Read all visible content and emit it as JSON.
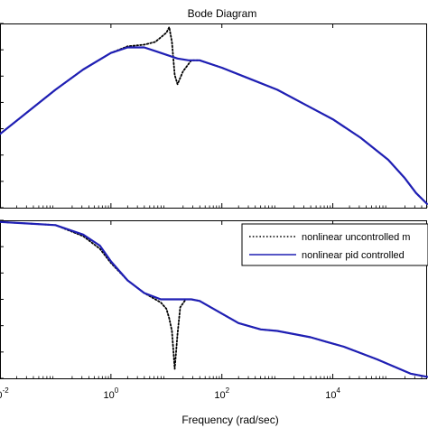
{
  "chart_data": {
    "type": "line",
    "title": "Bode Diagram",
    "xlabel": "Frequency  (rad/sec)",
    "xscale": "log10",
    "xlim_log10": [
      -2,
      5.7
    ],
    "xticks": [
      {
        "exp": -2,
        "base": "10",
        "sup": "-2"
      },
      {
        "exp": 0,
        "base": "10",
        "sup": "0"
      },
      {
        "exp": 2,
        "base": "10",
        "sup": "2"
      },
      {
        "exp": 4,
        "base": "10",
        "sup": "4"
      }
    ],
    "grid": false,
    "legend": {
      "placement": "top-right",
      "entries": [
        "nonlinear uncontrolled m",
        "nonlinear pid controlled"
      ]
    },
    "colors": {
      "pid": "#1f1fb4",
      "uncontrolled": "#000000"
    },
    "panels": [
      {
        "name": "magnitude",
        "ylim": [
          0,
          1
        ],
        "series": [
          {
            "name": "nonlinear uncontrolled m",
            "style": "dotted",
            "x": [
              -2,
              -1.5,
              -1,
              -0.5,
              0,
              0.3,
              0.6,
              0.8,
              1.0,
              1.05,
              1.1,
              1.15,
              1.2,
              1.3,
              1.45,
              1.6,
              2.0,
              2.5,
              3.0,
              3.5,
              4.0,
              4.5,
              5.0,
              5.3,
              5.5,
              5.7
            ],
            "y": [
              0.4,
              0.52,
              0.64,
              0.75,
              0.84,
              0.876,
              0.885,
              0.9,
              0.95,
              0.98,
              0.9,
              0.72,
              0.67,
              0.74,
              0.8,
              0.8,
              0.76,
              0.7,
              0.64,
              0.56,
              0.48,
              0.38,
              0.26,
              0.16,
              0.08,
              0.02
            ]
          },
          {
            "name": "nonlinear pid controlled",
            "style": "solid",
            "x": [
              -2,
              -1.5,
              -1,
              -0.5,
              0,
              0.3,
              0.6,
              0.8,
              1.0,
              1.2,
              1.4,
              1.6,
              2.0,
              2.5,
              3.0,
              3.5,
              4.0,
              4.5,
              5.0,
              5.3,
              5.5,
              5.7
            ],
            "y": [
              0.4,
              0.52,
              0.64,
              0.75,
              0.84,
              0.87,
              0.87,
              0.85,
              0.83,
              0.81,
              0.8,
              0.8,
              0.76,
              0.7,
              0.64,
              0.56,
              0.48,
              0.38,
              0.26,
              0.16,
              0.08,
              0.02
            ]
          }
        ]
      },
      {
        "name": "phase",
        "ylim": [
          0,
          1
        ],
        "series": [
          {
            "name": "nonlinear uncontrolled m",
            "style": "dotted",
            "x": [
              -2,
              -1.5,
              -1,
              -0.5,
              -0.2,
              0,
              0.3,
              0.6,
              0.9,
              1.0,
              1.05,
              1.1,
              1.15,
              1.2,
              1.25,
              1.35,
              1.45,
              1.6,
              1.8,
              2.0,
              2.3,
              2.7,
              3.0,
              3.3,
              3.6,
              3.9,
              4.2,
              4.5,
              4.8,
              5.0,
              5.2,
              5.4,
              5.7
            ],
            "y": [
              0.99,
              0.98,
              0.97,
              0.9,
              0.82,
              0.73,
              0.62,
              0.54,
              0.48,
              0.44,
              0.38,
              0.3,
              0.06,
              0.28,
              0.45,
              0.5,
              0.5,
              0.49,
              0.45,
              0.41,
              0.35,
              0.31,
              0.3,
              0.28,
              0.26,
              0.23,
              0.2,
              0.16,
              0.12,
              0.09,
              0.06,
              0.03,
              0.01
            ]
          },
          {
            "name": "nonlinear pid controlled",
            "style": "solid",
            "x": [
              -2,
              -1.5,
              -1,
              -0.5,
              -0.2,
              0,
              0.3,
              0.6,
              0.9,
              1.1,
              1.3,
              1.45,
              1.6,
              1.8,
              2.0,
              2.3,
              2.7,
              3.0,
              3.3,
              3.6,
              3.9,
              4.2,
              4.5,
              4.8,
              5.0,
              5.2,
              5.4,
              5.7
            ],
            "y": [
              0.99,
              0.98,
              0.97,
              0.91,
              0.84,
              0.74,
              0.62,
              0.54,
              0.5,
              0.5,
              0.5,
              0.5,
              0.49,
              0.45,
              0.41,
              0.35,
              0.31,
              0.3,
              0.28,
              0.26,
              0.23,
              0.2,
              0.16,
              0.12,
              0.09,
              0.06,
              0.03,
              0.01
            ]
          }
        ]
      }
    ]
  }
}
